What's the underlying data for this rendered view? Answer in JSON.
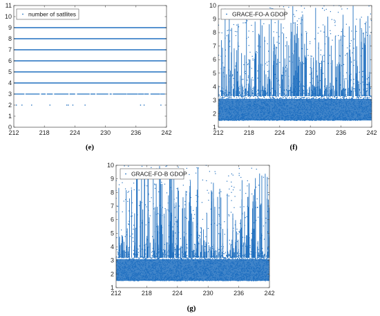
{
  "figure": {
    "panel_labels": [
      "(e)",
      "(f)",
      "(g)"
    ]
  },
  "colors": {
    "series": "#1f6fbf",
    "axes": "#444444"
  },
  "chart_data": [
    {
      "type": "scatter",
      "panel": "(e)",
      "title": "",
      "xlabel": "",
      "ylabel": "",
      "xlim": [
        212,
        242
      ],
      "ylim": [
        0,
        11
      ],
      "xticks": [
        212,
        218,
        224,
        230,
        236,
        242
      ],
      "yticks": [
        0,
        1,
        2,
        3,
        4,
        5,
        6,
        7,
        8,
        9,
        10,
        11
      ],
      "grid": false,
      "legend": "top-left",
      "series": [
        {
          "name": "number of satllites",
          "points_by_level": [
            {
              "y": 2,
              "x_values": [
                212.5,
                213.6,
                215.5,
                219.1,
                222.4,
                222.7,
                223.6,
                226.0,
                236.9,
                237.6,
                240.9
              ]
            },
            {
              "y": 3,
              "coverage": "dense, with sparse gaps",
              "x_range": [
                212,
                242
              ]
            },
            {
              "y": 4,
              "coverage": "continuous",
              "x_range": [
                212,
                242
              ]
            },
            {
              "y": 5,
              "coverage": "continuous",
              "x_range": [
                212,
                242
              ]
            },
            {
              "y": 6,
              "coverage": "continuous",
              "x_range": [
                212,
                242
              ]
            },
            {
              "y": 7,
              "coverage": "continuous",
              "x_range": [
                212,
                242
              ]
            },
            {
              "y": 8,
              "coverage": "continuous",
              "x_range": [
                212,
                242
              ]
            },
            {
              "y": 9,
              "coverage": "continuous",
              "x_range": [
                212,
                242
              ]
            }
          ]
        }
      ]
    },
    {
      "type": "scatter",
      "panel": "(f)",
      "title": "",
      "xlabel": "",
      "ylabel": "",
      "xlim": [
        212,
        242
      ],
      "ylim": [
        1,
        10
      ],
      "xticks": [
        212,
        218,
        224,
        230,
        236,
        242
      ],
      "yticks": [
        1,
        2,
        3,
        4,
        5,
        6,
        7,
        8,
        9,
        10
      ],
      "grid": false,
      "legend": "top-left",
      "series": [
        {
          "name": "GRACE-FO-A GDOP",
          "x_range": [
            212,
            242
          ],
          "dense_band": [
            1.5,
            3.7
          ],
          "typical_value": 2.5,
          "minimum": 1.4,
          "sparse_spikes_up_to": 10
        }
      ]
    },
    {
      "type": "scatter",
      "panel": "(g)",
      "title": "",
      "xlabel": "",
      "ylabel": "",
      "xlim": [
        212,
        242
      ],
      "ylim": [
        1,
        10
      ],
      "xticks": [
        212,
        218,
        224,
        230,
        236,
        242
      ],
      "yticks": [
        1,
        2,
        3,
        4,
        5,
        6,
        7,
        8,
        9,
        10
      ],
      "grid": false,
      "legend": "top-left",
      "series": [
        {
          "name": "GRACE-FO-B GDOP",
          "x_range": [
            212,
            242
          ],
          "dense_band": [
            1.5,
            3.6
          ],
          "typical_value": 2.4,
          "minimum": 1.4,
          "sparse_spikes_up_to": 10
        }
      ]
    }
  ]
}
